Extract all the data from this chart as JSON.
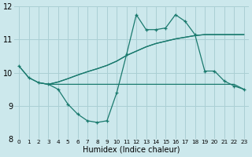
{
  "bg_color": "#cce8ec",
  "line_color": "#1a7a6e",
  "grid_color": "#aacfd4",
  "xlabel": "Humidex (Indice chaleur)",
  "xlim": [
    -0.5,
    23.5
  ],
  "ylim": [
    8,
    12
  ],
  "yticks": [
    8,
    9,
    10,
    11,
    12
  ],
  "xticks": [
    0,
    1,
    2,
    3,
    4,
    5,
    6,
    7,
    8,
    9,
    10,
    11,
    12,
    13,
    14,
    15,
    16,
    17,
    18,
    19,
    20,
    21,
    22,
    23
  ],
  "line_marked": {
    "x": [
      0,
      1,
      2,
      3,
      4,
      5,
      6,
      7,
      8,
      9,
      10,
      11,
      12,
      13,
      14,
      15,
      16,
      17,
      18,
      19,
      20,
      21,
      22,
      23
    ],
    "y": [
      10.2,
      9.85,
      9.7,
      9.65,
      9.5,
      9.05,
      8.75,
      8.55,
      8.5,
      8.55,
      9.4,
      10.55,
      11.75,
      11.3,
      11.3,
      11.35,
      11.75,
      11.55,
      11.15,
      10.05,
      10.05,
      9.75,
      9.6,
      9.5
    ]
  },
  "line_flat": {
    "x": [
      2,
      3,
      4,
      5,
      6,
      7,
      8,
      9,
      10,
      11,
      12,
      13,
      14,
      15,
      16,
      17,
      18,
      19,
      20,
      21,
      22,
      23
    ],
    "y": [
      9.7,
      9.65,
      9.65,
      9.65,
      9.65,
      9.65,
      9.65,
      9.65,
      9.65,
      9.65,
      9.65,
      9.65,
      9.65,
      9.65,
      9.65,
      9.65,
      9.65,
      9.65,
      9.65,
      9.65,
      9.65,
      9.5
    ]
  },
  "line_diag": {
    "x": [
      3,
      4,
      5,
      6,
      7,
      8,
      9,
      10,
      11,
      12,
      13,
      14,
      15,
      16,
      17,
      18,
      19,
      20,
      21,
      22,
      23
    ],
    "y": [
      9.65,
      9.72,
      9.82,
      9.93,
      10.03,
      10.12,
      10.22,
      10.35,
      10.52,
      10.65,
      10.78,
      10.88,
      10.95,
      11.02,
      11.07,
      11.12,
      11.15,
      11.15,
      11.15,
      11.15,
      11.15
    ]
  },
  "line_top": {
    "x": [
      0,
      1,
      2,
      3,
      4,
      5,
      6,
      7,
      8,
      9,
      10,
      11,
      12,
      13,
      14,
      15,
      16,
      17,
      18,
      19,
      20,
      21,
      22,
      23
    ],
    "y": [
      10.2,
      9.85,
      9.7,
      9.65,
      9.72,
      9.82,
      9.93,
      10.03,
      10.12,
      10.22,
      10.35,
      10.52,
      10.65,
      10.78,
      10.88,
      10.95,
      11.02,
      11.07,
      11.12,
      11.15,
      11.15,
      11.15,
      11.15,
      11.15
    ]
  }
}
